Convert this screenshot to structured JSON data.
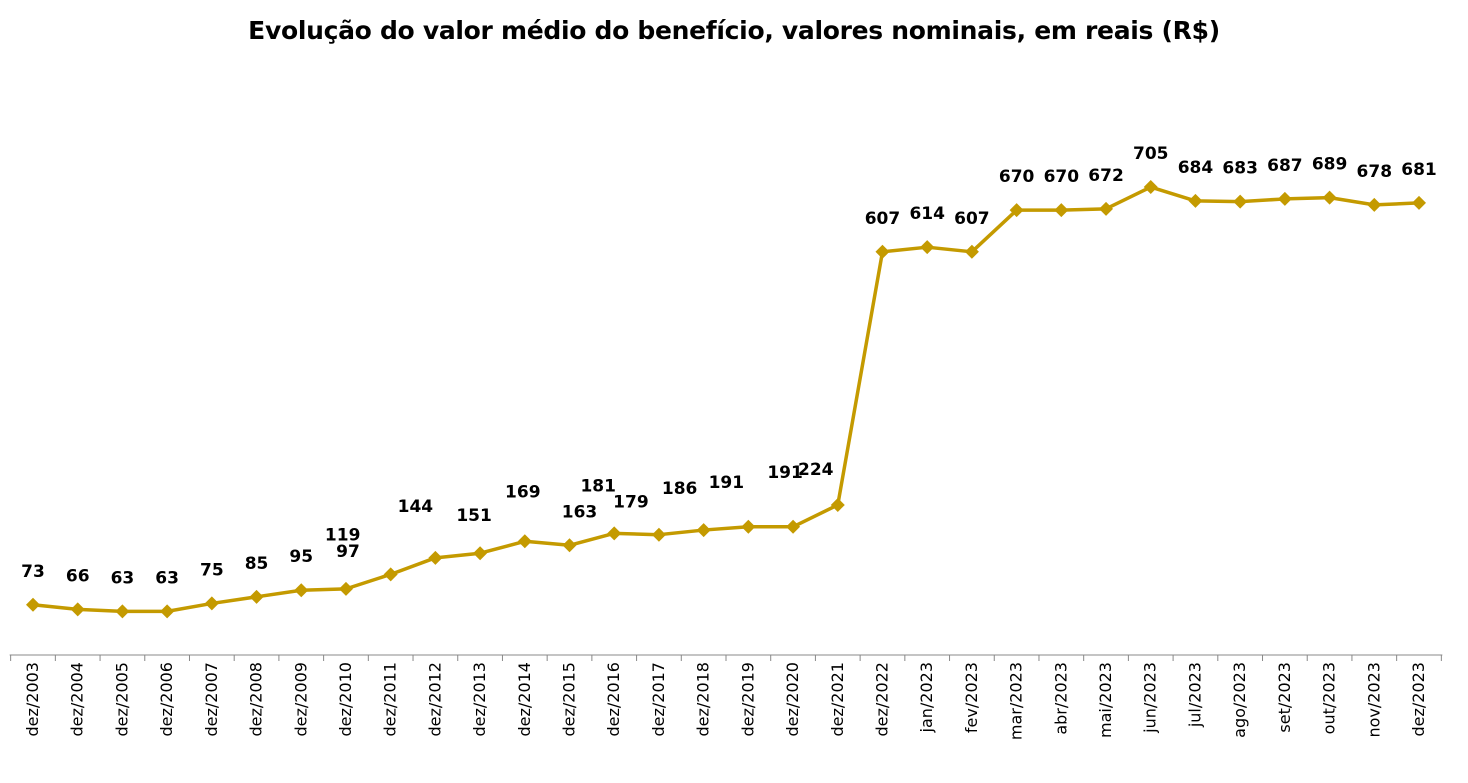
{
  "chart_data": {
    "type": "line",
    "title": "Evolução do valor médio do benefício, valores nominais, em reais (R$)",
    "xlabel": "",
    "ylabel": "",
    "categories": [
      "dez/2003",
      "dez/2004",
      "dez/2005",
      "dez/2006",
      "dez/2007",
      "dez/2008",
      "dez/2009",
      "dez/2010",
      "dez/2011",
      "dez/2012",
      "dez/2013",
      "dez/2014",
      "dez/2015",
      "dez/2016",
      "dez/2017",
      "dez/2018",
      "dez/2019",
      "dez/2020",
      "dez/2021",
      "dez/2022",
      "jan/2023",
      "fev/2023",
      "mar/2023",
      "abr/2023",
      "mai/2023",
      "jun/2023",
      "jul/2023",
      "ago/2023",
      "set/2023",
      "out/2023",
      "nov/2023",
      "dez/2023"
    ],
    "values": [
      73,
      66,
      63,
      63,
      75,
      85,
      95,
      97,
      119,
      144,
      151,
      169,
      163,
      181,
      179,
      186,
      191,
      191,
      224,
      607,
      614,
      607,
      670,
      670,
      672,
      705,
      684,
      683,
      687,
      689,
      678,
      681
    ],
    "ylim": [
      0,
      760
    ],
    "grid": false,
    "legend": "none",
    "marker": "diamond",
    "color": "#C49A00"
  }
}
